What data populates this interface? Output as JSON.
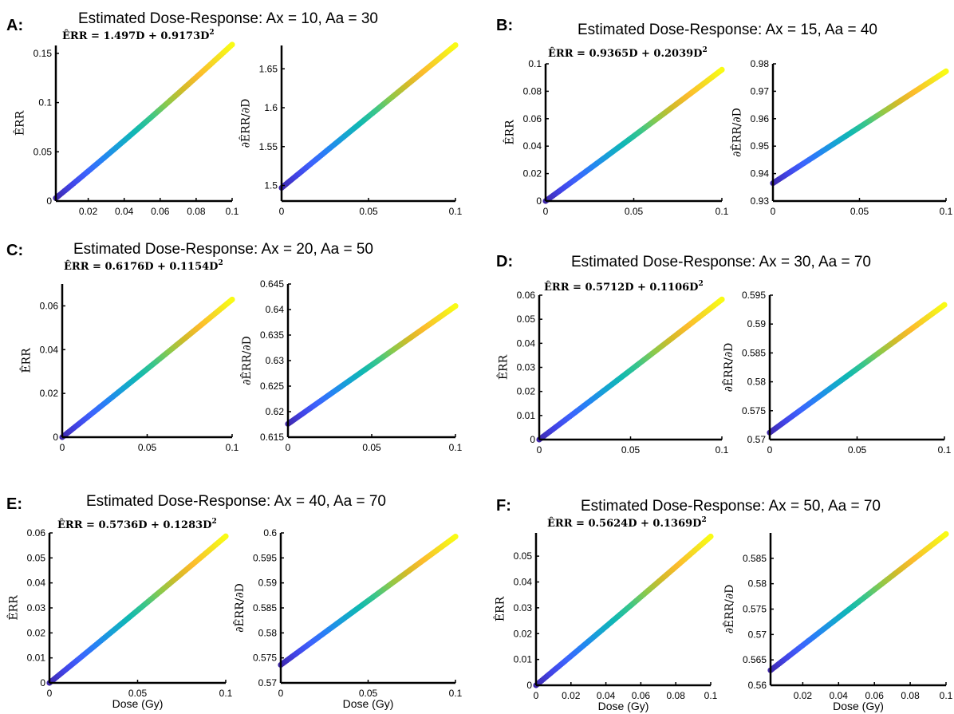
{
  "figure": {
    "colormap": [
      "#3e26a8",
      "#4143e6",
      "#3c64fd",
      "#2484f3",
      "#16a2d5",
      "#10b8b2",
      "#39c68a",
      "#8cc94a",
      "#d3bb28",
      "#fdbb2c",
      "#f5dc23",
      "#f9fb15"
    ]
  },
  "panels": [
    {
      "letter": "A:",
      "title": "Estimated Dose-Response: Ax = 10, Aa = 30",
      "equation": "ÊRR = 1.497D + 0.9173D",
      "equation_sup": "2",
      "left_ylabel": "ÊRR",
      "right_ylabel": "∂ÊRR/∂D",
      "xlabel": ""
    },
    {
      "letter": "B:",
      "title": "Estimated Dose-Response: Ax = 15, Aa = 40",
      "equation": "ÊRR = 0.9365D + 0.2039D",
      "equation_sup": "2",
      "left_ylabel": "ÊRR",
      "right_ylabel": "∂ÊRR/∂D",
      "xlabel": ""
    },
    {
      "letter": "C:",
      "title": "Estimated Dose-Response: Ax = 20, Aa = 50",
      "equation": "ÊRR = 0.6176D + 0.1154D",
      "equation_sup": "2",
      "left_ylabel": "ÊRR",
      "right_ylabel": "∂ÊRR/∂D",
      "xlabel": ""
    },
    {
      "letter": "D:",
      "title": "Estimated Dose-Response: Ax = 30, Aa = 70",
      "equation": "ÊRR = 0.5712D + 0.1106D",
      "equation_sup": "2",
      "left_ylabel": "ÊRR",
      "right_ylabel": "∂ÊRR/∂D",
      "xlabel": ""
    },
    {
      "letter": "E:",
      "title": "Estimated Dose-Response: Ax = 40, Aa = 70",
      "equation": "ÊRR = 0.5736D + 0.1283D",
      "equation_sup": "2",
      "left_ylabel": "ÊRR",
      "right_ylabel": "∂ÊRR/∂D",
      "xlabel": "Dose (Gy)"
    },
    {
      "letter": "F:",
      "title": "Estimated Dose-Response: Ax = 50, Aa = 70",
      "equation": "ÊRR = 0.5624D + 0.1369D",
      "equation_sup": "2",
      "left_ylabel": "ÊRR",
      "right_ylabel": "∂ÊRR/∂D",
      "xlabel": "Dose (Gy)"
    }
  ],
  "chart_data": [
    {
      "panel": "A",
      "plot": "left",
      "type": "scatter",
      "x_range": [
        0.002,
        0.1
      ],
      "xlim": [
        0.002,
        0.1
      ],
      "ylim": [
        0,
        0.158
      ],
      "xticks": [
        0.02,
        0.04,
        0.06,
        0.08,
        0.1
      ],
      "xtick_labels": [
        "0.02",
        "0.04",
        "0.06",
        "0.08",
        "0.1"
      ],
      "yticks": [
        0,
        0.05,
        0.1,
        0.15
      ],
      "ytick_labels": [
        "0",
        "0.05",
        "0.1",
        "0.15"
      ],
      "series": [
        {
          "linear": 1.497,
          "quadratic": 0.9173,
          "derivative": false
        }
      ]
    },
    {
      "panel": "A",
      "plot": "right",
      "type": "scatter",
      "x_range": [
        0,
        0.1
      ],
      "xlim": [
        0,
        0.1
      ],
      "ylim": [
        1.48,
        1.68
      ],
      "xticks": [
        0,
        0.05,
        0.1
      ],
      "xtick_labels": [
        "0",
        "0.05",
        "0.1"
      ],
      "yticks": [
        1.5,
        1.55,
        1.6,
        1.65
      ],
      "ytick_labels": [
        "1.5",
        "1.55",
        "1.6",
        "1.65"
      ],
      "series": [
        {
          "linear": 1.497,
          "quadratic": 0.9173,
          "derivative": true
        }
      ]
    },
    {
      "panel": "B",
      "plot": "left",
      "type": "scatter",
      "x_range": [
        0,
        0.1
      ],
      "xlim": [
        0,
        0.1
      ],
      "ylim": [
        0,
        0.1
      ],
      "xticks": [
        0,
        0.05,
        0.1
      ],
      "xtick_labels": [
        "0",
        "0.05",
        "0.1"
      ],
      "yticks": [
        0,
        0.02,
        0.04,
        0.06,
        0.08,
        0.1
      ],
      "ytick_labels": [
        "0",
        "0.02",
        "0.04",
        "0.06",
        "0.08",
        "0.1"
      ],
      "series": [
        {
          "linear": 0.9365,
          "quadratic": 0.2039,
          "derivative": false
        }
      ]
    },
    {
      "panel": "B",
      "plot": "right",
      "type": "scatter",
      "x_range": [
        0,
        0.1
      ],
      "xlim": [
        0,
        0.1
      ],
      "ylim": [
        0.93,
        0.98
      ],
      "xticks": [
        0,
        0.05,
        0.1
      ],
      "xtick_labels": [
        "0",
        "0.05",
        "0.1"
      ],
      "yticks": [
        0.93,
        0.94,
        0.95,
        0.96,
        0.97,
        0.98
      ],
      "ytick_labels": [
        "0.93",
        "0.94",
        "0.95",
        "0.96",
        "0.97",
        "0.98"
      ],
      "series": [
        {
          "linear": 0.9365,
          "quadratic": 0.2039,
          "derivative": true
        }
      ]
    },
    {
      "panel": "C",
      "plot": "left",
      "type": "scatter",
      "x_range": [
        0,
        0.1
      ],
      "xlim": [
        0,
        0.1
      ],
      "ylim": [
        0,
        0.07
      ],
      "xticks": [
        0,
        0.05,
        0.1
      ],
      "xtick_labels": [
        "0",
        "0.05",
        "0.1"
      ],
      "yticks": [
        0,
        0.02,
        0.04,
        0.06
      ],
      "ytick_labels": [
        "0",
        "0.02",
        "0.04",
        "0.06"
      ],
      "series": [
        {
          "linear": 0.6176,
          "quadratic": 0.1154,
          "derivative": false
        }
      ]
    },
    {
      "panel": "C",
      "plot": "right",
      "type": "scatter",
      "x_range": [
        0,
        0.1
      ],
      "xlim": [
        0,
        0.1
      ],
      "ylim": [
        0.615,
        0.645
      ],
      "xticks": [
        0,
        0.05,
        0.1
      ],
      "xtick_labels": [
        "0",
        "0.05",
        "0.1"
      ],
      "yticks": [
        0.615,
        0.62,
        0.625,
        0.63,
        0.635,
        0.64,
        0.645
      ],
      "ytick_labels": [
        "0.615",
        "0.62",
        "0.625",
        "0.63",
        "0.635",
        "0.64",
        "0.645"
      ],
      "series": [
        {
          "linear": 0.6176,
          "quadratic": 0.1154,
          "derivative": true
        }
      ]
    },
    {
      "panel": "D",
      "plot": "left",
      "type": "scatter",
      "x_range": [
        0,
        0.1
      ],
      "xlim": [
        0,
        0.1
      ],
      "ylim": [
        0,
        0.06
      ],
      "xticks": [
        0,
        0.05,
        0.1
      ],
      "xtick_labels": [
        "0",
        "0.05",
        "0.1"
      ],
      "yticks": [
        0,
        0.01,
        0.02,
        0.03,
        0.04,
        0.05,
        0.06
      ],
      "ytick_labels": [
        "0",
        "0.01",
        "0.02",
        "0.03",
        "0.04",
        "0.05",
        "0.06"
      ],
      "series": [
        {
          "linear": 0.5712,
          "quadratic": 0.1106,
          "derivative": false
        }
      ]
    },
    {
      "panel": "D",
      "plot": "right",
      "type": "scatter",
      "x_range": [
        0,
        0.1
      ],
      "xlim": [
        0,
        0.1
      ],
      "ylim": [
        0.57,
        0.595
      ],
      "xticks": [
        0,
        0.05,
        0.1
      ],
      "xtick_labels": [
        "0",
        "0.05",
        "0.1"
      ],
      "yticks": [
        0.57,
        0.575,
        0.58,
        0.585,
        0.59,
        0.595
      ],
      "ytick_labels": [
        "0.57",
        "0.575",
        "0.58",
        "0.585",
        "0.59",
        "0.595"
      ],
      "series": [
        {
          "linear": 0.5712,
          "quadratic": 0.1106,
          "derivative": true
        }
      ]
    },
    {
      "panel": "E",
      "plot": "left",
      "type": "scatter",
      "x_range": [
        0,
        0.1
      ],
      "xlim": [
        0,
        0.1
      ],
      "ylim": [
        0,
        0.06
      ],
      "xticks": [
        0,
        0.05,
        0.1
      ],
      "xtick_labels": [
        "0",
        "0.05",
        "0.1"
      ],
      "yticks": [
        0,
        0.01,
        0.02,
        0.03,
        0.04,
        0.05,
        0.06
      ],
      "ytick_labels": [
        "0",
        "0.01",
        "0.02",
        "0.03",
        "0.04",
        "0.05",
        "0.06"
      ],
      "series": [
        {
          "linear": 0.5736,
          "quadratic": 0.1283,
          "derivative": false
        }
      ]
    },
    {
      "panel": "E",
      "plot": "right",
      "type": "scatter",
      "x_range": [
        0,
        0.1
      ],
      "xlim": [
        0,
        0.1
      ],
      "ylim": [
        0.57,
        0.6
      ],
      "xticks": [
        0,
        0.05,
        0.1
      ],
      "xtick_labels": [
        "0",
        "0.05",
        "0.1"
      ],
      "yticks": [
        0.57,
        0.575,
        0.58,
        0.585,
        0.59,
        0.595,
        0.6
      ],
      "ytick_labels": [
        "0.57",
        "0.575",
        "0.58",
        "0.585",
        "0.59",
        "0.595",
        "0.6"
      ],
      "series": [
        {
          "linear": 0.5736,
          "quadratic": 0.1283,
          "derivative": true
        }
      ]
    },
    {
      "panel": "F",
      "plot": "left",
      "type": "scatter",
      "x_range": [
        0,
        0.1
      ],
      "xlim": [
        0,
        0.1
      ],
      "ylim": [
        0,
        0.059
      ],
      "xticks": [
        0,
        0.02,
        0.04,
        0.06,
        0.08,
        0.1
      ],
      "xtick_labels": [
        "0",
        "0.02",
        "0.04",
        "0.06",
        "0.08",
        "0.1"
      ],
      "yticks": [
        0,
        0.01,
        0.02,
        0.03,
        0.04,
        0.05
      ],
      "ytick_labels": [
        "0",
        "0.01",
        "0.02",
        "0.03",
        "0.04",
        "0.05"
      ],
      "series": [
        {
          "linear": 0.5624,
          "quadratic": 0.1369,
          "derivative": false
        }
      ]
    },
    {
      "panel": "F",
      "plot": "right",
      "type": "scatter",
      "x_range": [
        0.002,
        0.1
      ],
      "xlim": [
        0.002,
        0.1
      ],
      "ylim": [
        0.56,
        0.59
      ],
      "xticks": [
        0.02,
        0.04,
        0.06,
        0.08,
        0.1
      ],
      "xtick_labels": [
        "0.02",
        "0.04",
        "0.06",
        "0.08",
        "0.1"
      ],
      "yticks": [
        0.56,
        0.565,
        0.57,
        0.575,
        0.58,
        0.585
      ],
      "ytick_labels": [
        "0.56",
        "0.565",
        "0.57",
        "0.575",
        "0.58",
        "0.585"
      ],
      "series": [
        {
          "linear": 0.5624,
          "quadratic": 0.1369,
          "derivative": true
        }
      ]
    }
  ]
}
